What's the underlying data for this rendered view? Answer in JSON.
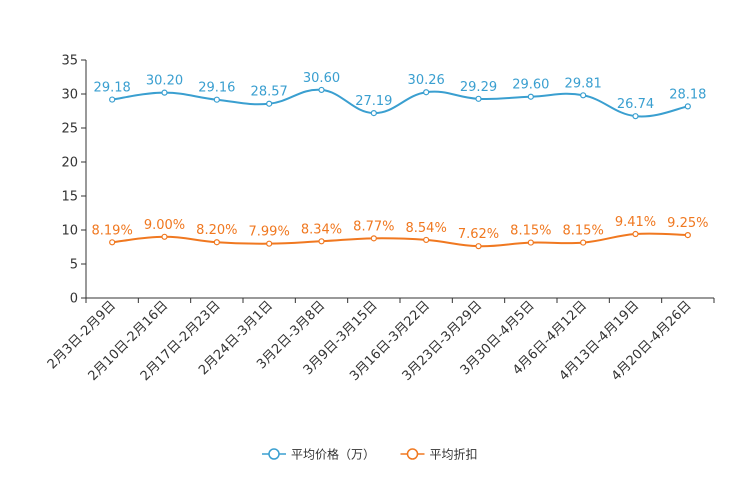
{
  "chart_data": {
    "type": "line",
    "categories": [
      "2月3日-2月9日",
      "2月10日-2月16日",
      "2月17日-2月23日",
      "2月24日-3月1日",
      "3月2日-3月8日",
      "3月9日-3月15日",
      "3月16日-3月22日",
      "3月23日-3月29日",
      "3月30日-4月5日",
      "4月6日-4月12日",
      "4月13日-4月19日",
      "4月20日-4月26日"
    ],
    "ylim": [
      0,
      35
    ],
    "yticks": [
      0,
      5,
      10,
      15,
      20,
      25,
      30,
      35
    ],
    "series": [
      {
        "name": "平均价格（万）",
        "color": "#3a9fd0",
        "values": [
          29.18,
          30.2,
          29.16,
          28.57,
          30.6,
          27.19,
          30.26,
          29.29,
          29.6,
          29.81,
          26.74,
          28.18
        ],
        "labels": [
          "29.18",
          "30.20",
          "29.16",
          "28.57",
          "30.60",
          "27.19",
          "30.26",
          "29.29",
          "29.60",
          "29.81",
          "26.74",
          "28.18"
        ]
      },
      {
        "name": "平均折扣",
        "color": "#f07820",
        "values": [
          8.19,
          9.0,
          8.2,
          7.99,
          8.34,
          8.77,
          8.54,
          7.62,
          8.15,
          8.15,
          9.41,
          9.25
        ],
        "labels": [
          "8.19%",
          "9.00%",
          "8.20%",
          "7.99%",
          "8.34%",
          "8.77%",
          "8.54%",
          "7.62%",
          "8.15%",
          "8.15%",
          "9.41%",
          "9.25%"
        ]
      }
    ]
  }
}
